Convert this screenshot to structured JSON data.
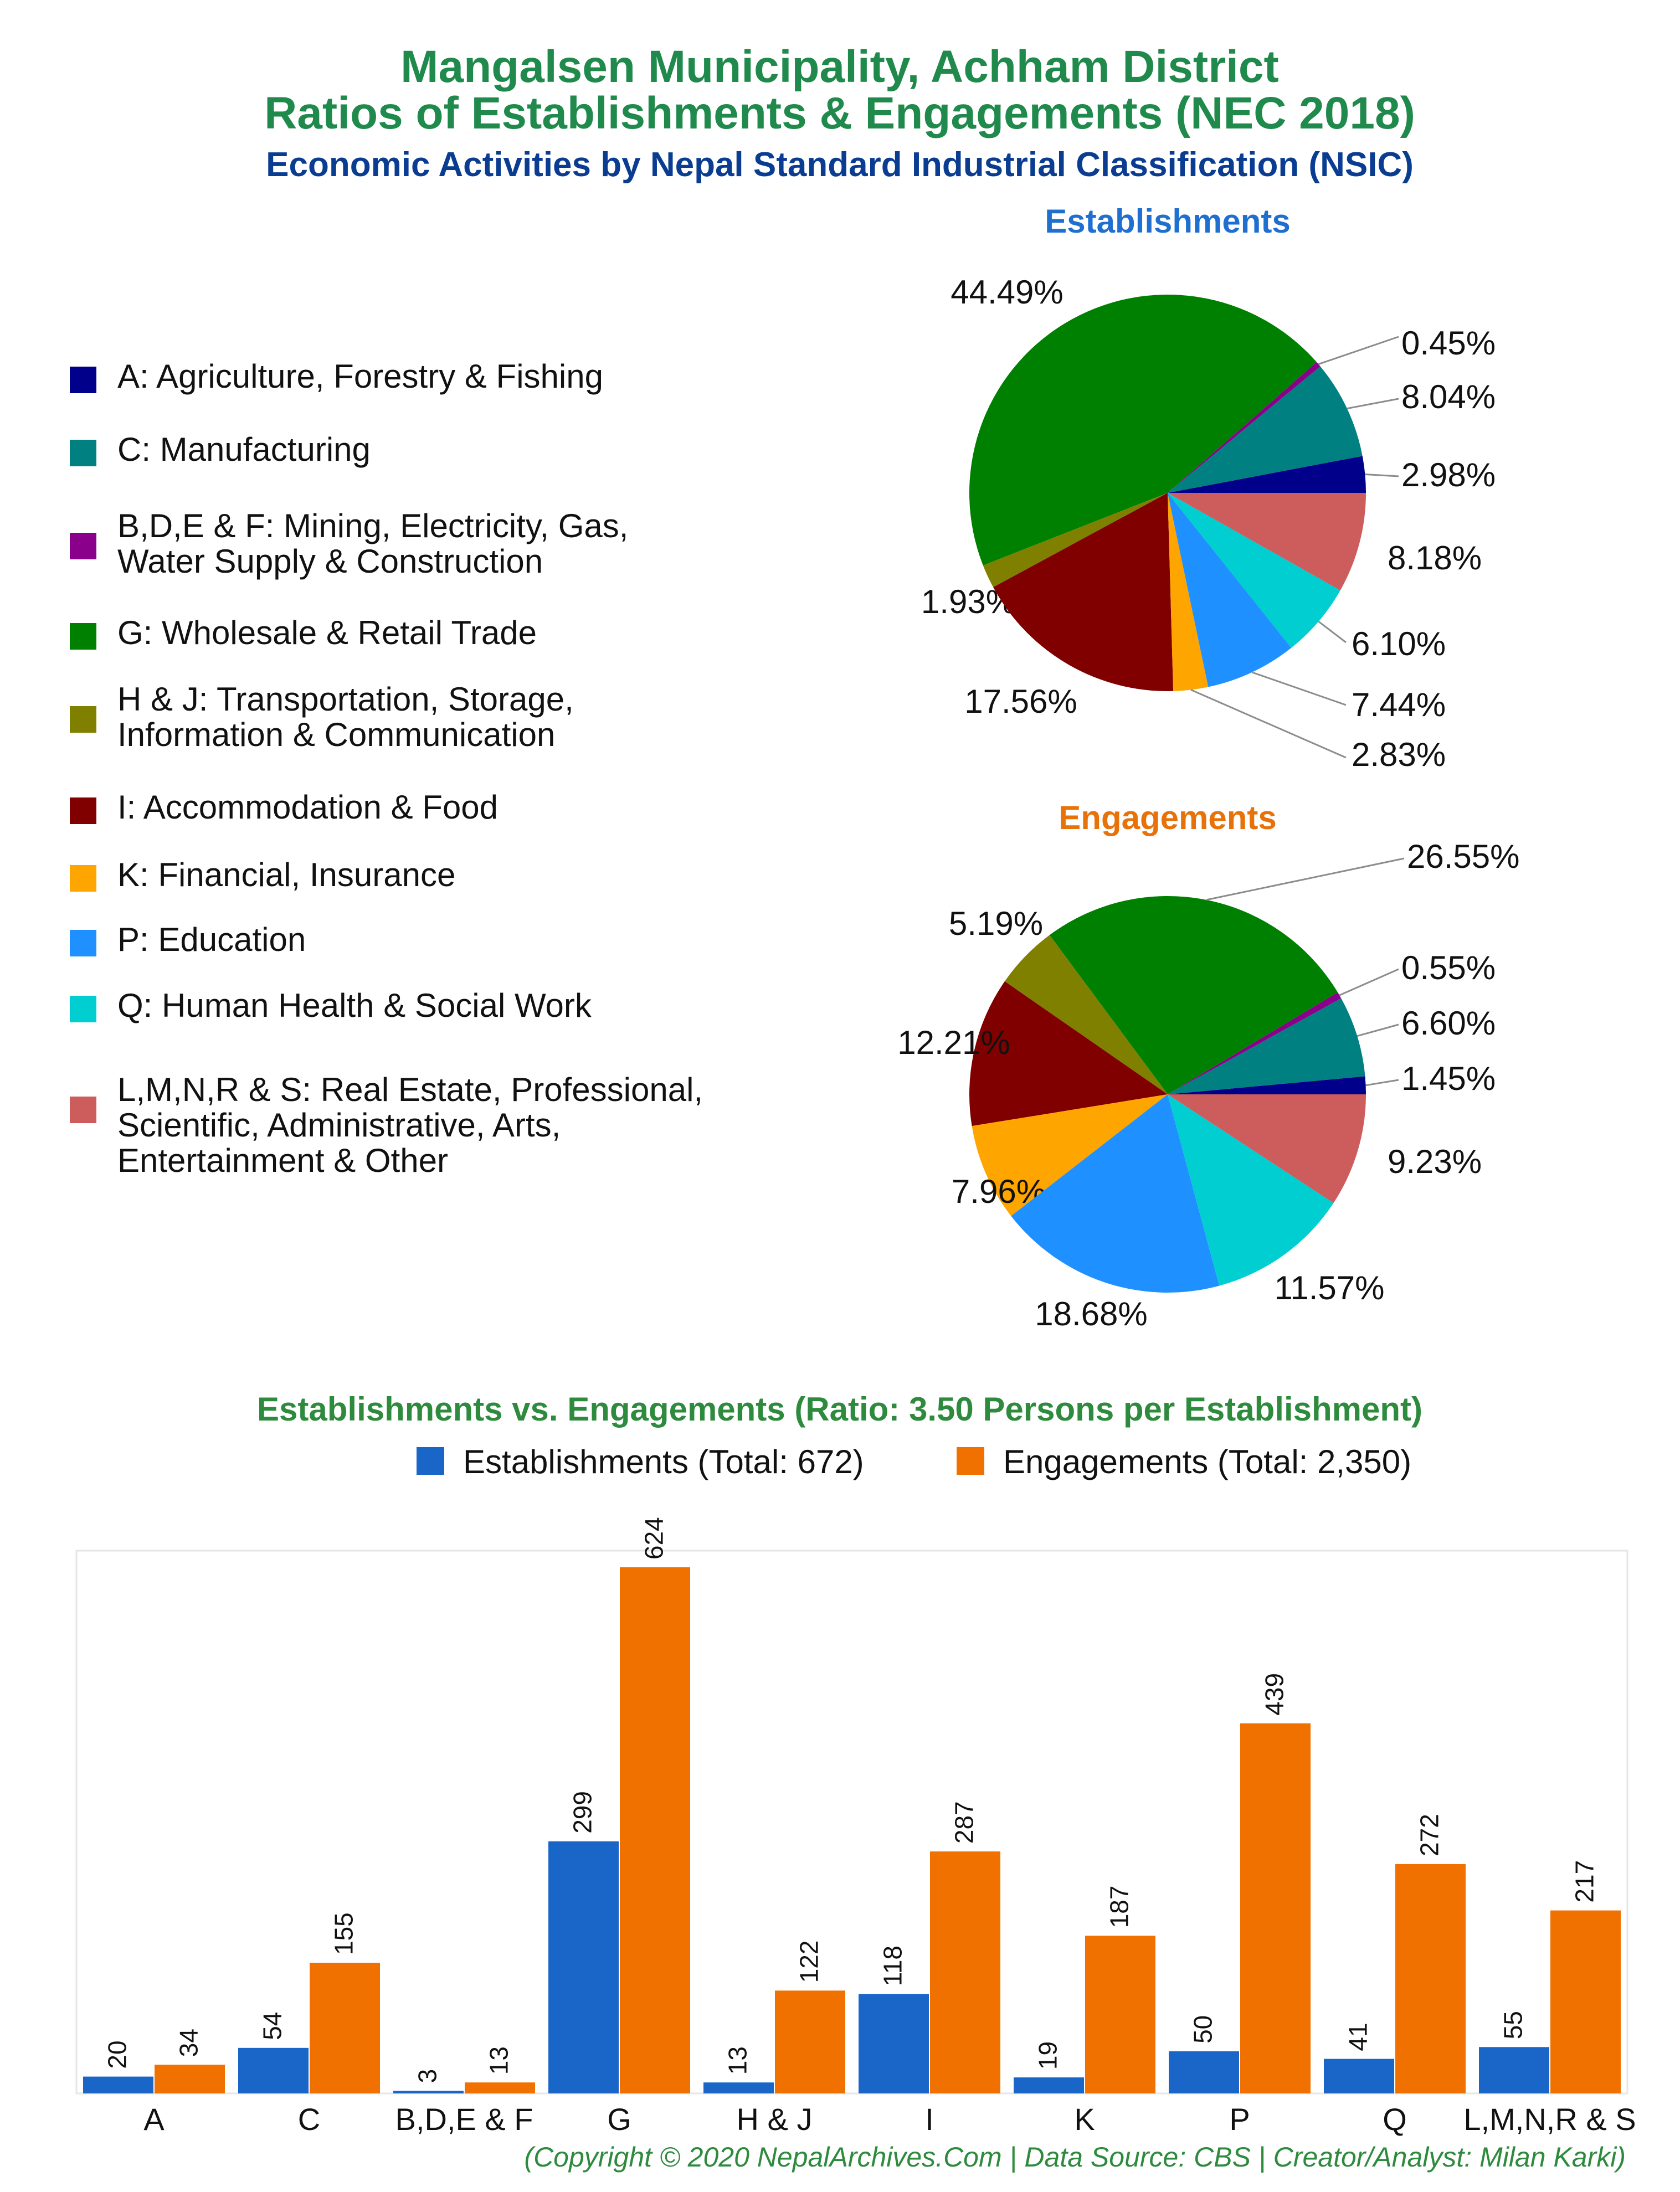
{
  "header": {
    "title_line1": "Mangalsen Municipality, Achham District",
    "title_line2": "Ratios of Establishments & Engagements (NEC 2018)",
    "subtitle": "Economic Activities by Nepal Standard Industrial Classification (NSIC)"
  },
  "colors": {
    "title_green": "#1f8a4c",
    "subtitle_blue": "#0a3d91",
    "estab_blue": "#1f6fd1",
    "engage_orange": "#e8720a",
    "bar_blue": "#1a66c8",
    "bar_orange": "#f07000",
    "leader_grey": "#8c8c8c"
  },
  "legend": {
    "items": [
      {
        "key": "A",
        "lines": [
          "A: Agriculture, Forestry & Fishing"
        ],
        "color": "#00008b"
      },
      {
        "key": "C",
        "lines": [
          "C: Manufacturing"
        ],
        "color": "#008080"
      },
      {
        "key": "BDEF",
        "lines": [
          "B,D,E & F: Mining, Electricity, Gas,",
          "Water Supply & Construction"
        ],
        "color": "#8b008b"
      },
      {
        "key": "G",
        "lines": [
          "G: Wholesale & Retail Trade"
        ],
        "color": "#008000"
      },
      {
        "key": "HJ",
        "lines": [
          "H & J: Transportation, Storage,",
          "Information & Communication"
        ],
        "color": "#808000"
      },
      {
        "key": "I",
        "lines": [
          "I: Accommodation & Food"
        ],
        "color": "#800000"
      },
      {
        "key": "K",
        "lines": [
          "K: Financial, Insurance"
        ],
        "color": "#ffa500"
      },
      {
        "key": "P",
        "lines": [
          "P: Education"
        ],
        "color": "#1e90ff"
      },
      {
        "key": "Q",
        "lines": [
          "Q: Human Health & Social Work"
        ],
        "color": "#00ced1"
      },
      {
        "key": "LMNRS",
        "lines": [
          "L,M,N,R & S: Real Estate, Professional,",
          "Scientific, Administrative, Arts,",
          "Entertainment & Other"
        ],
        "color": "#cd5c5c"
      }
    ]
  },
  "pies": {
    "establishments": {
      "title": "Establishments",
      "labels": [
        "2.98%",
        "8.04%",
        "0.45%",
        "44.49%",
        "1.93%",
        "17.56%",
        "2.83%",
        "7.44%",
        "6.10%",
        "8.18%"
      ]
    },
    "engagements": {
      "title": "Engagements",
      "labels": [
        "1.45%",
        "6.60%",
        "0.55%",
        "26.55%",
        "5.19%",
        "12.21%",
        "7.96%",
        "18.68%",
        "11.57%",
        "9.23%"
      ]
    }
  },
  "bar_chart": {
    "title": "Establishments vs. Engagements (Ratio: 3.50 Persons per Establishment)",
    "legend_estab": "Establishments (Total: 672)",
    "legend_engage": "Engagements (Total: 2,350)"
  },
  "footer": {
    "credit": "(Copyright © 2020 NepalArchives.Com | Data Source: CBS | Creator/Analyst: Milan Karki)"
  },
  "chart_data": [
    {
      "type": "pie",
      "title": "Establishments",
      "categories": [
        "A",
        "C",
        "B,D,E & F",
        "G",
        "H & J",
        "I",
        "K",
        "P",
        "Q",
        "L,M,N,R & S"
      ],
      "values": [
        2.98,
        8.04,
        0.45,
        44.49,
        1.93,
        17.56,
        2.83,
        7.44,
        6.1,
        8.18
      ]
    },
    {
      "type": "pie",
      "title": "Engagements",
      "categories": [
        "A",
        "C",
        "B,D,E & F",
        "G",
        "H & J",
        "I",
        "K",
        "P",
        "Q",
        "L,M,N,R & S"
      ],
      "values": [
        1.45,
        6.6,
        0.55,
        26.55,
        5.19,
        12.21,
        7.96,
        18.68,
        11.57,
        9.23
      ]
    },
    {
      "type": "bar",
      "title": "Establishments vs. Engagements (Ratio: 3.50 Persons per Establishment)",
      "categories": [
        "A",
        "C",
        "B,D,E & F",
        "G",
        "H & J",
        "I",
        "K",
        "P",
        "Q",
        "L,M,N,R & S"
      ],
      "series": [
        {
          "name": "Establishments (Total: 672)",
          "values": [
            20,
            54,
            3,
            299,
            13,
            118,
            19,
            50,
            41,
            55
          ]
        },
        {
          "name": "Engagements (Total: 2,350)",
          "values": [
            34,
            155,
            13,
            624,
            122,
            287,
            187,
            439,
            272,
            217
          ]
        }
      ],
      "ylim": [
        0,
        624
      ],
      "grid": false,
      "legend": "top"
    }
  ]
}
